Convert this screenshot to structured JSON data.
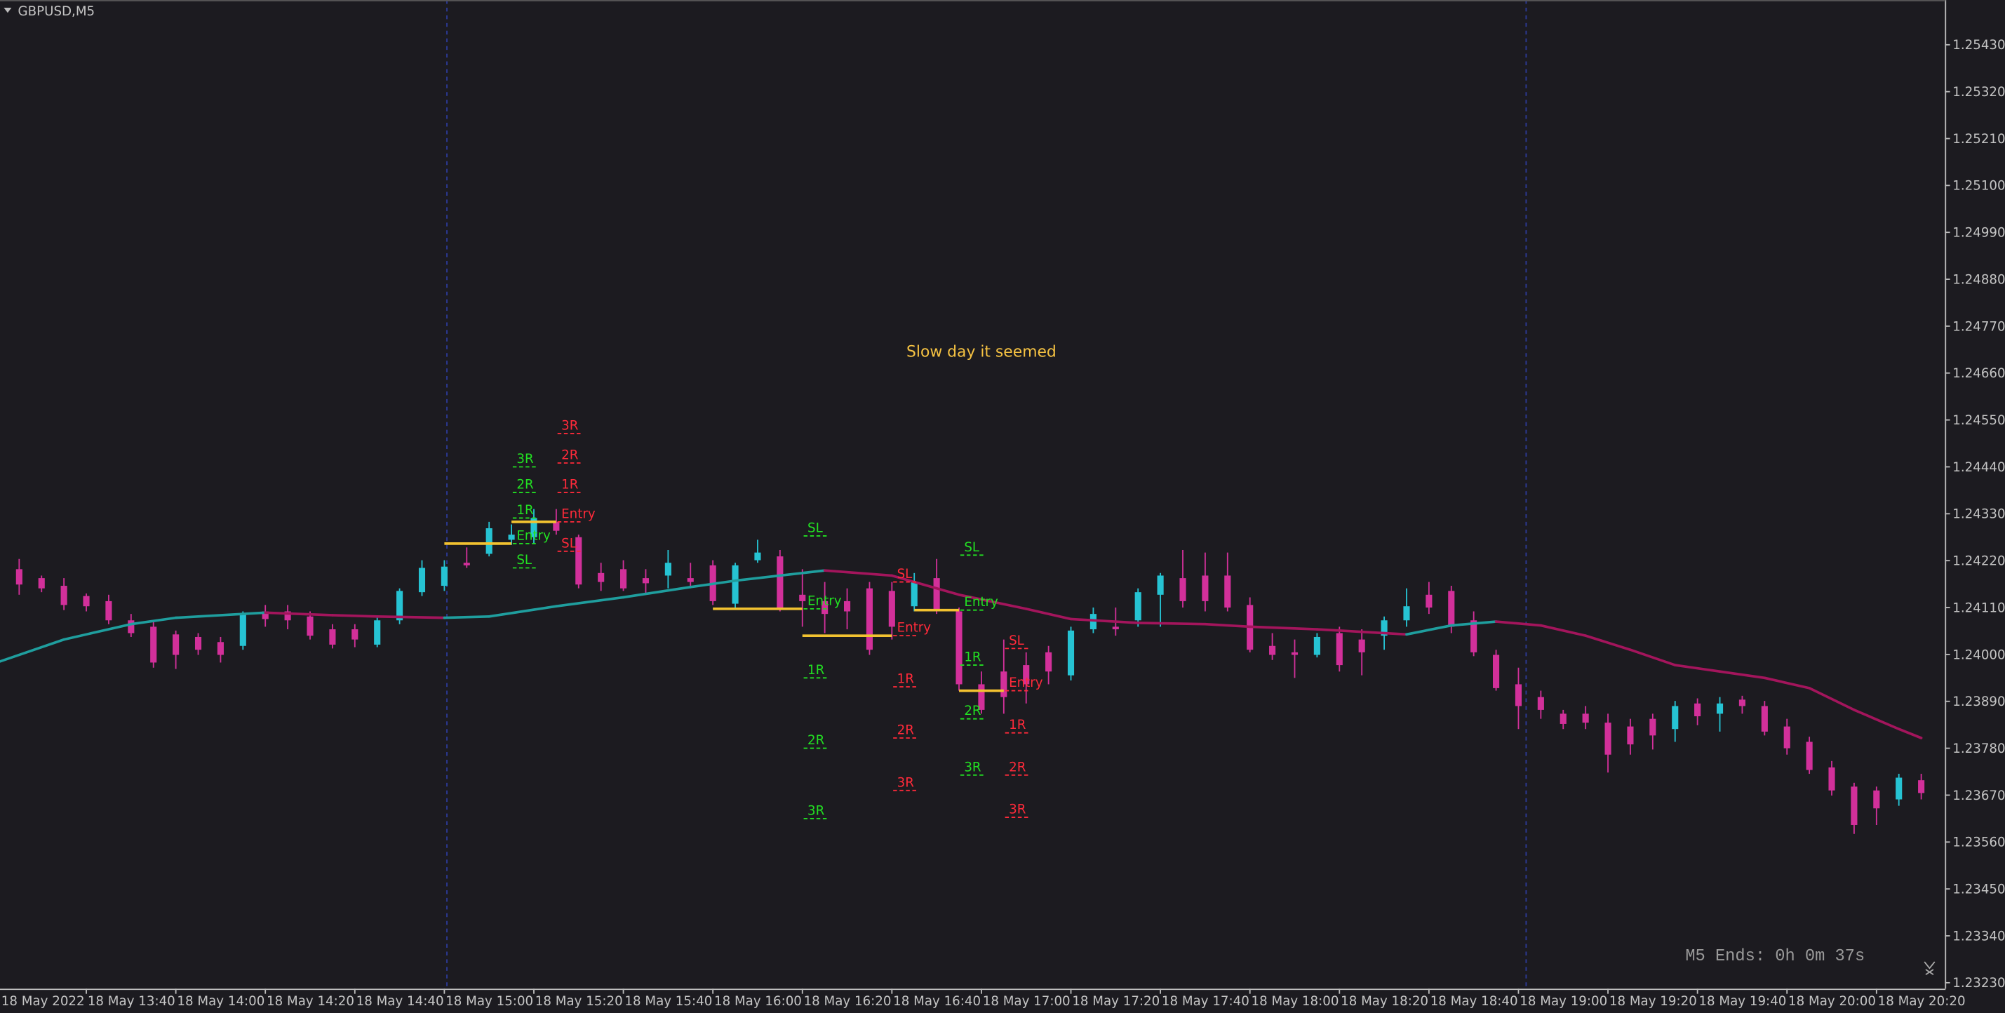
{
  "chart_data": {
    "type": "candlestick",
    "title": "GBPUSD,M5",
    "footer": "M5 Ends: 0h 0m 37s",
    "categories": [
      "18 May 2022",
      null,
      null,
      null,
      "18 May 13:40",
      null,
      null,
      null,
      "18 May 14:00",
      null,
      null,
      null,
      "18 May 14:20",
      null,
      null,
      null,
      "18 May 14:40",
      null,
      null,
      null,
      "18 May 15:00",
      null,
      null,
      null,
      "18 May 15:20",
      null,
      null,
      null,
      "18 May 15:40",
      null,
      null,
      null,
      "18 May 16:00",
      null,
      null,
      null,
      "18 May 16:20",
      null,
      null,
      null,
      "18 May 16:40",
      null,
      null,
      null,
      "18 May 17:00",
      null,
      null,
      null,
      "18 May 17:20",
      null,
      null,
      null,
      "18 May 17:40",
      null,
      null,
      null,
      "18 May 18:00",
      null,
      null,
      null,
      "18 May 18:20",
      null,
      null,
      null,
      "18 May 18:40",
      null,
      null,
      null,
      "18 May 19:00",
      null,
      null,
      null,
      "18 May 19:20",
      null,
      null,
      null,
      "18 May 19:40",
      null,
      null,
      null,
      "18 May 20:00",
      null,
      null,
      null,
      "18 May 20:20",
      null,
      null
    ],
    "open": [
      null,
      1.242,
      1.24179,
      1.24161,
      1.24137,
      1.24125,
      1.2408,
      1.24065,
      1.24047,
      1.24041,
      1.24029,
      1.2402,
      1.24101,
      1.24101,
      1.24089,
      1.24059,
      1.24059,
      1.24023,
      1.2408,
      1.24146,
      1.24161,
      1.24215,
      1.24236,
      1.24269,
      1.24275,
      1.24311,
      1.24275,
      1.24191,
      1.242,
      1.24179,
      1.24185,
      1.24179,
      1.24209,
      1.24119,
      1.24221,
      1.2423,
      1.2414,
      1.24125,
      1.24125,
      1.24155,
      1.24149,
      1.24113,
      1.24179,
      1.24101,
      1.2393,
      1.2396,
      1.23975,
      1.24005,
      1.23951,
      1.24059,
      1.24065,
      1.2408,
      1.2414,
      1.24179,
      1.24185,
      1.24185,
      1.24116,
      1.2402,
      1.24005,
      1.23999,
      1.2405,
      1.24035,
      1.24044,
      1.2408,
      1.2414,
      1.24149,
      1.2408,
      1.23999,
      1.2393,
      1.239,
      1.23861,
      1.23861,
      1.2384,
      1.23831,
      1.23849,
      1.23825,
      1.23885,
      1.23861,
      1.23894,
      1.23879,
      1.23831,
      1.23795,
      1.23735,
      1.2369,
      1.23681,
      1.2366,
      1.23705
    ],
    "high": [
      null,
      1.24224,
      1.24185,
      1.24179,
      1.24143,
      1.2414,
      1.24095,
      1.2408,
      1.24056,
      1.2405,
      1.24041,
      1.24101,
      1.24116,
      1.24116,
      1.24101,
      1.24071,
      1.24071,
      1.24086,
      1.24155,
      1.24221,
      1.24221,
      1.24251,
      1.24311,
      1.24305,
      1.24341,
      1.24341,
      1.24281,
      1.24215,
      1.24221,
      1.242,
      1.24245,
      1.24215,
      1.24221,
      1.24215,
      1.24269,
      1.24245,
      1.242,
      1.2417,
      1.24155,
      1.2417,
      1.2417,
      1.24191,
      1.24224,
      1.2411,
      1.2396,
      1.24035,
      1.24005,
      1.2402,
      1.24065,
      1.2411,
      1.2411,
      1.24155,
      1.24191,
      1.24245,
      1.24239,
      1.24239,
      1.24134,
      1.2405,
      1.24035,
      1.2405,
      1.24065,
      1.24059,
      1.24089,
      1.24155,
      1.2417,
      1.24161,
      1.24101,
      1.24011,
      1.23969,
      1.23915,
      1.2387,
      1.23879,
      1.23861,
      1.23849,
      1.23861,
      1.23891,
      1.23897,
      1.239,
      1.23903,
      1.23891,
      1.23849,
      1.23807,
      1.2375,
      1.23699,
      1.2369,
      1.2372,
      1.2372
    ],
    "low": [
      null,
      1.2414,
      1.24146,
      1.24104,
      1.24101,
      1.24071,
      1.24041,
      1.23969,
      1.23966,
      1.23999,
      1.23981,
      1.24011,
      1.24065,
      1.24059,
      1.24035,
      1.24014,
      1.24017,
      1.24017,
      1.24071,
      1.24137,
      1.24149,
      1.24203,
      1.2423,
      1.24257,
      1.2426,
      1.24281,
      1.24155,
      1.24149,
      1.24149,
      1.2414,
      1.24155,
      1.24161,
      1.24116,
      1.2411,
      1.24215,
      1.24101,
      1.24065,
      1.2405,
      1.24059,
      1.23999,
      1.24035,
      1.24101,
      1.24095,
      1.23915,
      1.23861,
      1.23861,
      1.23885,
      1.2393,
      1.23939,
      1.2405,
      1.24044,
      1.24065,
      1.24065,
      1.2411,
      1.24101,
      1.24101,
      1.24005,
      1.23987,
      1.23945,
      1.23993,
      1.2396,
      1.23951,
      1.24011,
      1.24065,
      1.24095,
      1.2405,
      1.23996,
      1.23915,
      1.23825,
      1.23849,
      1.23825,
      1.23825,
      1.23723,
      1.23765,
      1.23777,
      1.23795,
      1.23834,
      1.23819,
      1.23861,
      1.2381,
      1.23765,
      1.2372,
      1.23669,
      1.23579,
      1.236,
      1.23645,
      1.2366
    ],
    "close": [
      null,
      1.24164,
      1.24155,
      1.24116,
      1.24113,
      1.2408,
      1.2405,
      1.23981,
      1.23999,
      1.24011,
      1.23999,
      1.24095,
      1.24083,
      1.2408,
      1.24044,
      1.24023,
      1.24035,
      1.2408,
      1.24149,
      1.24203,
      1.24206,
      1.24209,
      1.24296,
      1.24281,
      1.2432,
      1.2429,
      1.24164,
      1.2417,
      1.24155,
      1.24167,
      1.24215,
      1.2417,
      1.24125,
      1.24209,
      1.24239,
      1.2411,
      1.24125,
      1.24095,
      1.24101,
      1.24011,
      1.24065,
      1.2417,
      1.24101,
      1.2393,
      1.2387,
      1.239,
      1.2393,
      1.2396,
      1.24056,
      1.24095,
      1.24059,
      1.24146,
      1.24185,
      1.24125,
      1.24125,
      1.2411,
      1.24011,
      1.23999,
      1.23999,
      1.24041,
      1.23975,
      1.24005,
      1.2408,
      1.24113,
      1.2411,
      1.24065,
      1.24005,
      1.23921,
      1.23879,
      1.2387,
      1.23837,
      1.2384,
      1.23765,
      1.23789,
      1.2381,
      1.23879,
      1.23855,
      1.23885,
      1.23879,
      1.23819,
      1.2378,
      1.23729,
      1.23681,
      1.236,
      1.23639,
      1.23711,
      1.23675
    ],
    "up_color": "#26c3d3",
    "down_color": "#d2309a",
    "ylim": [
      1.23216,
      1.25535
    ],
    "yticks": [
      {
        "value": 1.2543,
        "label": "1.25430"
      },
      {
        "value": 1.2532,
        "label": "1.25320"
      },
      {
        "value": 1.2521,
        "label": "1.25210"
      },
      {
        "value": 1.251,
        "label": "1.25100"
      },
      {
        "value": 1.2499,
        "label": "1.24990"
      },
      {
        "value": 1.2488,
        "label": "1.24880"
      },
      {
        "value": 1.2477,
        "label": "1.24770"
      },
      {
        "value": 1.2466,
        "label": "1.24660"
      },
      {
        "value": 1.2455,
        "label": "1.24550"
      },
      {
        "value": 1.2444,
        "label": "1.24440"
      },
      {
        "value": 1.2433,
        "label": "1.24330"
      },
      {
        "value": 1.2422,
        "label": "1.24220"
      },
      {
        "value": 1.2411,
        "label": "1.24110"
      },
      {
        "value": 1.24,
        "label": "1.24000"
      },
      {
        "value": 1.2389,
        "label": "1.23890"
      },
      {
        "value": 1.2378,
        "label": "1.23780"
      },
      {
        "value": 1.2367,
        "label": "1.23670"
      },
      {
        "value": 1.2356,
        "label": "1.23560"
      },
      {
        "value": 1.2345,
        "label": "1.23450"
      },
      {
        "value": 1.2334,
        "label": "1.23340"
      },
      {
        "value": 1.2323,
        "label": "1.23230"
      }
    ],
    "overlay": {
      "type": "line",
      "up_color": "#1f9e9e",
      "down_color": "#a3155c",
      "x": [
        0,
        3,
        6,
        8,
        12,
        15,
        17,
        20,
        22,
        25,
        28,
        31,
        33,
        35,
        37,
        40,
        43,
        46,
        48,
        51,
        54,
        56,
        59,
        61,
        63,
        65,
        67,
        69,
        71,
        73,
        75,
        77,
        79,
        81,
        83,
        85,
        86
      ],
      "values": [
        1.23981,
        1.24035,
        1.24071,
        1.24086,
        1.24098,
        1.24092,
        1.24089,
        1.24086,
        1.24089,
        1.24113,
        1.24134,
        1.24158,
        1.24173,
        1.24185,
        1.24197,
        1.24185,
        1.2414,
        1.24107,
        1.24083,
        1.24074,
        1.24071,
        1.24065,
        1.24059,
        1.24053,
        1.24047,
        1.24068,
        1.24077,
        1.24068,
        1.24044,
        1.24011,
        1.23975,
        1.2396,
        1.23945,
        1.23921,
        1.2387,
        1.23825,
        1.23804
      ]
    },
    "entry_color": "#f2c230",
    "trades": [
      {
        "color": "#22e022",
        "x": [
          20,
          23
        ],
        "levels": [
          {
            "label": "3R",
            "value": 1.2444
          },
          {
            "label": "2R",
            "value": 1.2438
          },
          {
            "label": "1R",
            "value": 1.2432
          },
          {
            "label": "Entry",
            "value": 1.2426
          },
          {
            "label": "SL",
            "value": 1.24203
          }
        ]
      },
      {
        "color": "#ff2a3a",
        "x": [
          23,
          25
        ],
        "levels": [
          {
            "label": "3R",
            "value": 1.24518
          },
          {
            "label": "2R",
            "value": 1.24449
          },
          {
            "label": "1R",
            "value": 1.2438
          },
          {
            "label": "Entry",
            "value": 1.24311
          },
          {
            "label": "SL",
            "value": 1.24242
          }
        ]
      },
      {
        "color": "#22e022",
        "x": [
          32,
          36
        ],
        "levels": [
          {
            "label": "SL",
            "value": 1.24278
          },
          {
            "label": "Entry",
            "value": 1.24107
          },
          {
            "label": "1R",
            "value": 1.23945
          },
          {
            "label": "2R",
            "value": 1.2378
          },
          {
            "label": "3R",
            "value": 1.23615
          }
        ]
      },
      {
        "color": "#ff2a3a",
        "x": [
          36,
          40
        ],
        "levels": [
          {
            "label": "SL",
            "value": 1.2417
          },
          {
            "label": "Entry",
            "value": 1.24044
          },
          {
            "label": "1R",
            "value": 1.23924
          },
          {
            "label": "2R",
            "value": 1.23804
          },
          {
            "label": "3R",
            "value": 1.23681
          }
        ]
      },
      {
        "color": "#22e022",
        "x": [
          41,
          43
        ],
        "levels": [
          {
            "label": "SL",
            "value": 1.24233
          },
          {
            "label": "Entry",
            "value": 1.24104
          },
          {
            "label": "1R",
            "value": 1.23975
          },
          {
            "label": "2R",
            "value": 1.23849
          },
          {
            "label": "3R",
            "value": 1.23717
          }
        ]
      },
      {
        "color": "#ff2a3a",
        "x": [
          43,
          45
        ],
        "levels": [
          {
            "label": "SL",
            "value": 1.24014
          },
          {
            "label": "Entry",
            "value": 1.23915
          },
          {
            "label": "1R",
            "value": 1.23816
          },
          {
            "label": "2R",
            "value": 1.23717
          },
          {
            "label": "3R",
            "value": 1.23618
          }
        ]
      }
    ],
    "annotations": [
      {
        "text": "Slow day it seemed",
        "x": 44,
        "y": 1.2471,
        "color": "#f5c242"
      }
    ]
  }
}
